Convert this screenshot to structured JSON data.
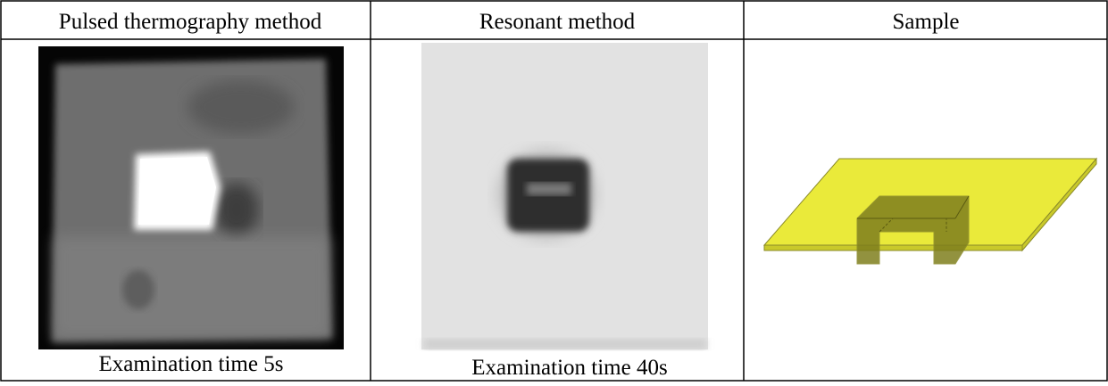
{
  "table": {
    "headers": [
      "Pulsed thermography method",
      "Resonant method",
      "Sample"
    ],
    "captions": [
      "Examination time 5s",
      "Examination time 40s"
    ]
  }
}
